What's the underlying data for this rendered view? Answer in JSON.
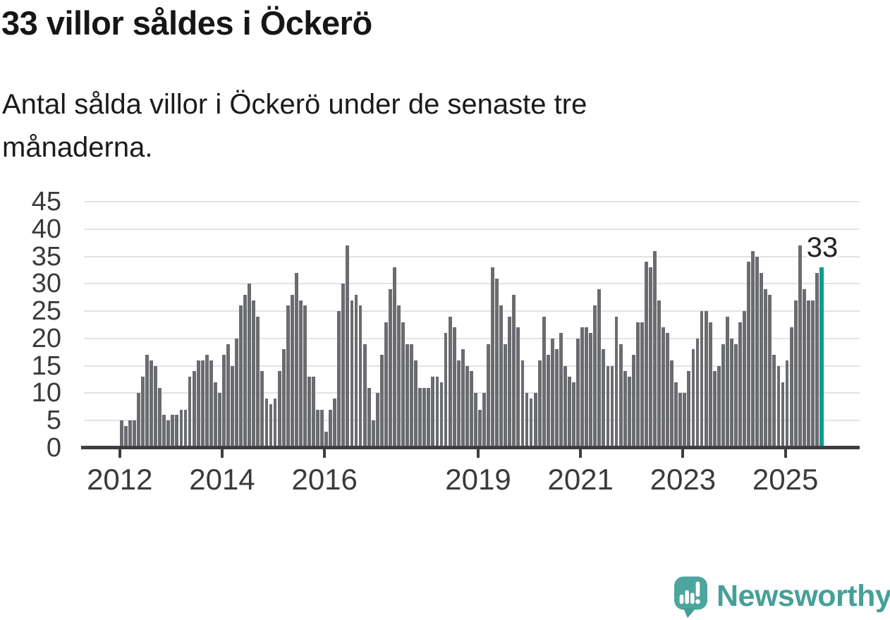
{
  "header": {
    "title": "33 villor såldes i Öckerö",
    "subtitle": "Antal sålda villor i Öckerö under de senaste tre månaderna.",
    "subtitle_lines": [
      "Antal sålda villor i Öckerö under de senaste tre",
      "månaderna."
    ]
  },
  "branding": {
    "wordmark": "Newsworthy",
    "icon": "newsworthy-speech-bubble-bar-chart-icon"
  },
  "colors": {
    "bar": "#6b6c70",
    "highlight": "#089c94",
    "grid": "#e3e3e3",
    "axis": "#3d3d42",
    "label_text": "#3a3a3a",
    "brand_teal": "#46a099"
  },
  "chart_data": {
    "type": "bar",
    "title": "33 villor såldes i Öckerö",
    "xlabel": "",
    "ylabel": "",
    "grid": true,
    "legend": false,
    "period_start": "2012-01",
    "period_end": "2025-09",
    "ylim": [
      0,
      45
    ],
    "y_ticks": [
      0,
      5,
      10,
      15,
      20,
      25,
      30,
      35,
      40,
      45
    ],
    "x_ticks": [
      {
        "label": "2012",
        "month_offset": 0
      },
      {
        "label": "2014",
        "month_offset": 24
      },
      {
        "label": "2016",
        "month_offset": 48
      },
      {
        "label": "2019",
        "month_offset": 84
      },
      {
        "label": "2021",
        "month_offset": 108
      },
      {
        "label": "2023",
        "month_offset": 132
      },
      {
        "label": "2025",
        "month_offset": 156
      }
    ],
    "values": [
      5,
      4,
      5,
      5,
      10,
      13,
      17,
      16,
      15,
      11,
      6,
      5,
      6,
      6,
      7,
      7,
      13,
      14,
      16,
      16,
      17,
      16,
      12,
      10,
      17,
      19,
      15,
      20,
      26,
      28,
      30,
      27,
      24,
      14,
      9,
      8,
      9,
      14,
      18,
      26,
      28,
      32,
      27,
      26,
      13,
      13,
      7,
      7,
      3,
      7,
      9,
      25,
      30,
      37,
      27,
      28,
      26,
      19,
      11,
      5,
      10,
      17,
      23,
      29,
      33,
      26,
      23,
      19,
      19,
      16,
      11,
      11,
      11,
      13,
      13,
      12,
      21,
      24,
      22,
      16,
      18,
      15,
      14,
      10,
      7,
      10,
      19,
      33,
      31,
      26,
      19,
      24,
      28,
      22,
      16,
      10,
      9,
      10,
      16,
      24,
      17,
      20,
      18,
      21,
      15,
      13,
      12,
      20,
      22,
      22,
      21,
      26,
      29,
      18,
      15,
      15,
      24,
      19,
      14,
      13,
      17,
      23,
      23,
      34,
      33,
      36,
      27,
      22,
      21,
      16,
      12,
      10,
      10,
      14,
      18,
      20,
      25,
      25,
      23,
      14,
      15,
      19,
      24,
      20,
      19,
      23,
      25,
      34,
      36,
      35,
      32,
      29,
      28,
      17,
      15,
      12,
      16,
      22,
      27,
      37,
      29,
      27,
      27,
      32,
      33
    ],
    "highlight": {
      "index": 164,
      "value": 33,
      "label": "33"
    }
  }
}
